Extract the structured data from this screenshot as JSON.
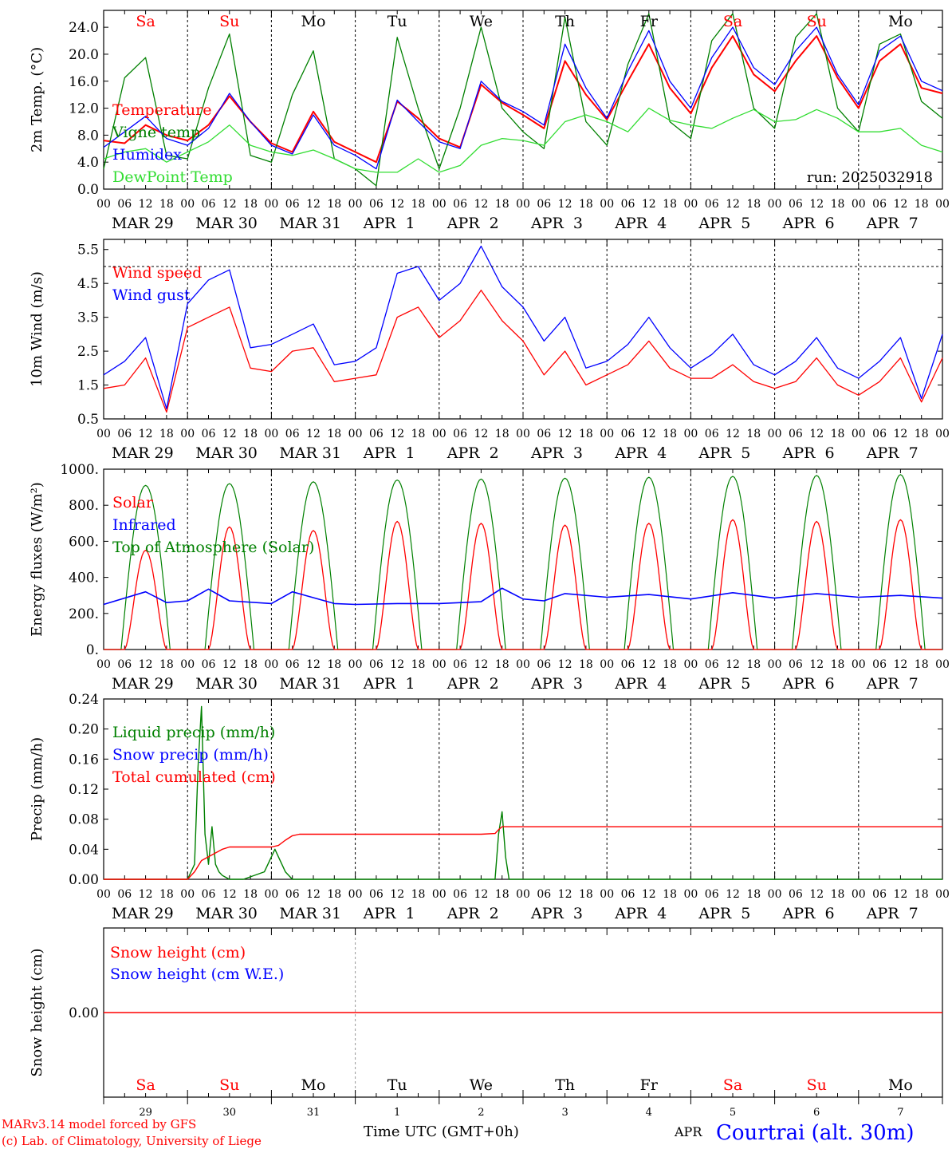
{
  "days_top": [
    {
      "label": "Sa",
      "color": "#ff0000"
    },
    {
      "label": "Su",
      "color": "#ff0000"
    },
    {
      "label": "Mo",
      "color": "#000000"
    },
    {
      "label": "Tu",
      "color": "#000000"
    },
    {
      "label": "We",
      "color": "#000000"
    },
    {
      "label": "Th",
      "color": "#000000"
    },
    {
      "label": "Fr",
      "color": "#000000"
    },
    {
      "label": "Sa",
      "color": "#ff0000"
    },
    {
      "label": "Su",
      "color": "#ff0000"
    },
    {
      "label": "Mo",
      "color": "#000000"
    }
  ],
  "date_labels": [
    "MAR 29",
    "MAR 30",
    "MAR 31",
    "APR  1",
    "APR  2",
    "APR  3",
    "APR  4",
    "APR  5",
    "APR  6",
    "APR  7"
  ],
  "hour_ticks": [
    "00",
    "06",
    "12",
    "18"
  ],
  "hour_end": "00",
  "bottom_days": [
    "29",
    "30",
    "31",
    "1",
    "2",
    "3",
    "4",
    "5",
    "6",
    "7"
  ],
  "bottom_month": "APR",
  "bottom_xlabel": "Time UTC (GMT+0h)",
  "footer": {
    "line1": "MARv3.14 model forced by GFS",
    "line2": "(c) Lab. of Climatology, University of Liege",
    "station": "Courtrai (alt. 30m)"
  },
  "colors": {
    "red": "#ff0000",
    "blue": "#0000ff",
    "green": "#008000",
    "lightgreen": "#33dd33"
  },
  "chart_data": [
    {
      "type": "line",
      "ylabel": "2m Temp. (°C)",
      "ylim": [
        0,
        26.5
      ],
      "yticks": [
        "24.0",
        "20.0",
        "16.0",
        "12.0",
        "8.0",
        "4.0",
        "0.0"
      ],
      "ytick_values": [
        24,
        20,
        16,
        12,
        8,
        4,
        0
      ],
      "run_label": "run: 2025032918",
      "x_hours": [
        0,
        6,
        12,
        18,
        24,
        30,
        36,
        42,
        48,
        54,
        60,
        66,
        72,
        78,
        84,
        90,
        96,
        102,
        108,
        114,
        120,
        126,
        132,
        138,
        144,
        150,
        156,
        162,
        168,
        174,
        180,
        186,
        192,
        198,
        204,
        210,
        216,
        222,
        228,
        234,
        240
      ],
      "series": [
        {
          "name": "Temperature",
          "color": "#ff0000",
          "values": [
            7.2,
            6.8,
            9.5,
            8.0,
            7.2,
            9.5,
            13.8,
            10.0,
            6.8,
            5.5,
            11.5,
            7.0,
            5.5,
            4.0,
            13.0,
            10.5,
            7.5,
            6.2,
            15.5,
            12.8,
            11.0,
            9.0,
            19.0,
            14.0,
            10.3,
            16.0,
            21.5,
            15.0,
            11.2,
            18.0,
            22.7,
            17.0,
            14.5,
            19.0,
            22.7,
            16.5,
            12.0,
            19.0,
            21.5,
            15.0,
            14.2
          ]
        },
        {
          "name": "Vigne temp",
          "color": "#008000",
          "values": [
            3.0,
            16.5,
            19.5,
            5.0,
            4.5,
            15.0,
            23.0,
            5.0,
            4.0,
            14.0,
            20.5,
            4.5,
            3.0,
            0.5,
            22.5,
            12.0,
            3.0,
            12.0,
            24.0,
            12.0,
            8.5,
            6.0,
            25.5,
            10.0,
            6.5,
            18.5,
            26.0,
            10.0,
            7.5,
            22.0,
            26.0,
            12.0,
            9.0,
            22.5,
            26.0,
            12.0,
            8.5,
            21.5,
            23.0,
            13.0,
            10.5
          ]
        },
        {
          "name": "Humidex",
          "color": "#0000ff",
          "values": [
            6.2,
            8.5,
            10.8,
            7.5,
            6.5,
            9.0,
            14.2,
            10.0,
            6.5,
            5.2,
            11.0,
            6.5,
            5.0,
            3.0,
            13.2,
            10.0,
            7.0,
            6.0,
            16.0,
            13.0,
            11.5,
            9.5,
            21.5,
            15.0,
            10.5,
            17.5,
            23.5,
            16.0,
            12.0,
            19.5,
            24.0,
            18.0,
            15.5,
            20.5,
            24.0,
            17.0,
            12.5,
            20.5,
            22.7,
            16.0,
            14.6
          ]
        },
        {
          "name": "DewPoint Temp",
          "color": "#33dd33",
          "values": [
            4.5,
            5.5,
            6.0,
            4.0,
            5.5,
            7.0,
            9.5,
            6.5,
            5.5,
            5.0,
            5.8,
            4.5,
            3.0,
            2.5,
            2.5,
            4.5,
            2.5,
            3.5,
            6.5,
            7.5,
            7.2,
            6.5,
            10.0,
            11.0,
            10.0,
            8.5,
            12.0,
            10.2,
            9.5,
            9.0,
            10.5,
            11.8,
            10.0,
            10.3,
            11.8,
            10.5,
            8.5,
            8.5,
            9.0,
            6.5,
            5.5
          ]
        }
      ]
    },
    {
      "type": "line",
      "ylabel": "10m Wind (m/s)",
      "ylim": [
        0.5,
        5.8
      ],
      "yticks": [
        "5.5",
        "4.5",
        "3.5",
        "2.5",
        "1.5",
        "0.5"
      ],
      "ytick_values": [
        5.5,
        4.5,
        3.5,
        2.5,
        1.5,
        0.5
      ],
      "ref_line": 5.0,
      "x_hours": [
        0,
        6,
        12,
        18,
        24,
        30,
        36,
        42,
        48,
        54,
        60,
        66,
        72,
        78,
        84,
        90,
        96,
        102,
        108,
        114,
        120,
        126,
        132,
        138,
        144,
        150,
        156,
        162,
        168,
        174,
        180,
        186,
        192,
        198,
        204,
        210,
        216,
        222,
        228,
        234,
        240
      ],
      "series": [
        {
          "name": "Wind speed",
          "color": "#ff0000",
          "values": [
            1.4,
            1.5,
            2.3,
            0.7,
            3.2,
            3.5,
            3.8,
            2.0,
            1.9,
            2.5,
            2.6,
            1.6,
            1.7,
            1.8,
            3.5,
            3.8,
            2.9,
            3.4,
            4.3,
            3.4,
            2.8,
            1.8,
            2.5,
            1.5,
            1.8,
            2.1,
            2.8,
            2.0,
            1.7,
            1.7,
            2.1,
            1.6,
            1.4,
            1.6,
            2.3,
            1.5,
            1.2,
            1.6,
            2.3,
            1.0,
            2.3
          ]
        },
        {
          "name": "Wind gust",
          "color": "#0000ff",
          "values": [
            1.8,
            2.2,
            2.9,
            0.8,
            3.9,
            4.6,
            4.9,
            2.6,
            2.7,
            3.0,
            3.3,
            2.1,
            2.2,
            2.6,
            4.8,
            5.0,
            4.0,
            4.5,
            5.6,
            4.4,
            3.8,
            2.8,
            3.5,
            2.0,
            2.2,
            2.7,
            3.5,
            2.6,
            2.0,
            2.4,
            3.0,
            2.1,
            1.8,
            2.2,
            2.9,
            2.0,
            1.7,
            2.2,
            2.9,
            1.1,
            3.0
          ]
        }
      ]
    },
    {
      "type": "line",
      "ylabel": "Energy fluxes (W/m²)",
      "ylim": [
        0,
        1000
      ],
      "yticks": [
        "1000.",
        "800.",
        "600.",
        "400.",
        "200.",
        "0."
      ],
      "ytick_values": [
        1000,
        800,
        600,
        400,
        200,
        0
      ],
      "days": 10,
      "solar_peaks": [
        550,
        680,
        660,
        710,
        700,
        690,
        700,
        720,
        710,
        720
      ],
      "toa_peaks": [
        910,
        920,
        930,
        940,
        945,
        950,
        955,
        960,
        965,
        970
      ],
      "series": [
        {
          "name": "Solar",
          "color": "#ff0000"
        },
        {
          "name": "Infrared",
          "color": "#0000ff",
          "x_hours": [
            0,
            12,
            18,
            24,
            30,
            36,
            48,
            54,
            66,
            72,
            84,
            96,
            108,
            114,
            120,
            126,
            132,
            144,
            156,
            168,
            180,
            192,
            204,
            216,
            228,
            240
          ],
          "values": [
            250,
            320,
            260,
            270,
            335,
            270,
            255,
            320,
            255,
            250,
            255,
            255,
            265,
            340,
            280,
            270,
            310,
            290,
            305,
            280,
            315,
            285,
            310,
            290,
            300,
            285
          ]
        },
        {
          "name": "Top of Atmosphere (Solar)",
          "color": "#008000"
        }
      ]
    },
    {
      "type": "line",
      "ylabel": "Precip (mm/h)",
      "ylim": [
        0,
        0.24
      ],
      "yticks": [
        "0.24",
        "0.20",
        "0.16",
        "0.12",
        "0.08",
        "0.04",
        "0.00"
      ],
      "ytick_values": [
        0.24,
        0.2,
        0.16,
        0.12,
        0.08,
        0.04,
        0.0
      ],
      "series": [
        {
          "name": "Liquid precip (mm/h)",
          "color": "#008000",
          "x_hours": [
            0,
            24,
            26,
            27,
            28,
            29,
            30,
            31,
            32,
            33,
            34,
            36,
            40,
            46,
            48,
            49,
            50,
            52,
            54,
            56,
            90,
            110,
            112,
            113,
            114,
            115,
            116,
            240
          ],
          "values": [
            0,
            0,
            0.02,
            0.15,
            0.23,
            0.06,
            0.02,
            0.07,
            0.02,
            0.01,
            0.005,
            0,
            0,
            0.01,
            0.03,
            0.04,
            0.03,
            0.01,
            0,
            0,
            0,
            0,
            0,
            0.06,
            0.09,
            0.03,
            0,
            0
          ]
        },
        {
          "name": "Snow precip (mm/h)",
          "color": "#0000ff",
          "x_hours": [],
          "values": []
        },
        {
          "name": "Total cumulated (cm)",
          "color": "#ff0000",
          "x_hours": [
            0,
            24,
            26,
            28,
            30,
            34,
            36,
            48,
            50,
            52,
            54,
            56,
            60,
            108,
            112,
            113,
            114,
            240
          ],
          "values": [
            0,
            0,
            0.01,
            0.025,
            0.03,
            0.04,
            0.043,
            0.043,
            0.045,
            0.052,
            0.058,
            0.06,
            0.06,
            0.06,
            0.061,
            0.066,
            0.07,
            0.07
          ]
        }
      ]
    },
    {
      "type": "line",
      "ylabel": "Snow height (cm)",
      "ylim": [
        -1,
        1
      ],
      "yticks": [
        "0.00"
      ],
      "ytick_values": [
        0
      ],
      "series": [
        {
          "name": "Snow height (cm)",
          "color": "#ff0000",
          "x_hours": [
            0,
            240
          ],
          "values": [
            0,
            0
          ]
        },
        {
          "name": "Snow height (cm W.E.)",
          "color": "#0000ff",
          "x_hours": [],
          "values": []
        }
      ]
    }
  ]
}
